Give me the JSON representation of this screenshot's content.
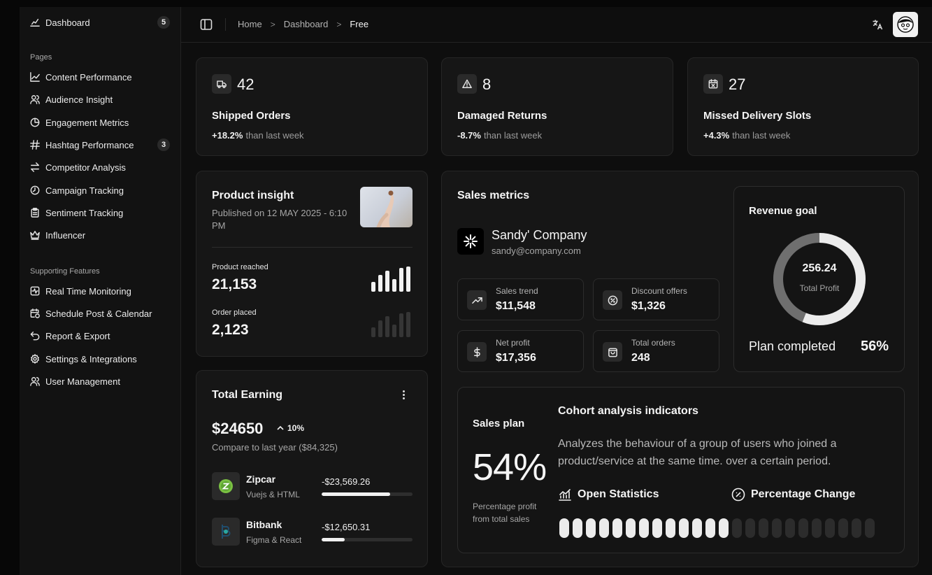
{
  "sidebar": {
    "dashboard": {
      "label": "Dashboard",
      "badge": "5",
      "icon": "chart-icon"
    },
    "pages_heading": "Pages",
    "pages": [
      {
        "label": "Content Performance",
        "icon": "line-chart-icon"
      },
      {
        "label": "Audience Insight",
        "icon": "users-icon"
      },
      {
        "label": "Engagement Metrics",
        "icon": "pie-chart-icon"
      },
      {
        "label": "Hashtag Performance",
        "icon": "hash-icon",
        "badge": "3"
      },
      {
        "label": "Competitor Analysis",
        "icon": "arrows-icon"
      },
      {
        "label": "Campaign Tracking",
        "icon": "clock-icon"
      },
      {
        "label": "Sentiment Tracking",
        "icon": "clipboard-icon"
      },
      {
        "label": "Influencer",
        "icon": "crown-icon"
      }
    ],
    "supporting_heading": "Supporting Features",
    "supporting": [
      {
        "label": "Real Time Monitoring",
        "icon": "activity-icon"
      },
      {
        "label": "Schedule Post & Calendar",
        "icon": "calendar-clock-icon"
      },
      {
        "label": "Report & Export",
        "icon": "undo-icon"
      },
      {
        "label": "Settings & Integrations",
        "icon": "gear-icon"
      },
      {
        "label": "User Management",
        "icon": "users-icon"
      }
    ]
  },
  "breadcrumb": [
    "Home",
    "Dashboard",
    "Free"
  ],
  "stats": [
    {
      "value": "42",
      "title": "Shipped Orders",
      "change": "+18.2%",
      "suffix": "than last week",
      "icon": "truck-icon"
    },
    {
      "value": "8",
      "title": "Damaged Returns",
      "change": "-8.7%",
      "suffix": "than last week",
      "icon": "warning-icon"
    },
    {
      "value": "27",
      "title": "Missed Delivery Slots",
      "change": "+4.3%",
      "suffix": "than last week",
      "icon": "calendar-x-icon"
    }
  ],
  "product_insight": {
    "title": "Product insight",
    "published": "Published on 12 MAY 2025 - 6:10 PM",
    "reached_label": "Product reached",
    "reached_value": "21,153",
    "order_label": "Order placed",
    "order_value": "2,123"
  },
  "total_earning": {
    "title": "Total Earning",
    "amount": "$24650",
    "change": "10%",
    "compare": "Compare to last year ($84,325)",
    "items": [
      {
        "name": "Zipcar",
        "sub": "Vuejs & HTML",
        "amount": "-$23,569.26",
        "progress": 0.75
      },
      {
        "name": "Bitbank",
        "sub": "Figma & React",
        "amount": "-$12,650.31",
        "progress": 0.25
      }
    ]
  },
  "sales_metrics": {
    "title": "Sales metrics",
    "company": "Sandy' Company",
    "email": "sandy@company.com",
    "boxes": [
      {
        "label": "Sales trend",
        "value": "$11,548",
        "icon": "trend-up-icon"
      },
      {
        "label": "Discount offers",
        "value": "$1,326",
        "icon": "discount-icon"
      },
      {
        "label": "Net profit",
        "value": "$17,356",
        "icon": "dollar-icon"
      },
      {
        "label": "Total orders",
        "value": "248",
        "icon": "bag-icon"
      }
    ]
  },
  "revenue_goal": {
    "title": "Revenue goal",
    "value": "256.24",
    "value_label": "Total Profit",
    "plan_label": "Plan completed",
    "plan_value": "56%",
    "fraction": 0.56
  },
  "sales_plan": {
    "title": "Sales plan",
    "percent": "54%",
    "caption": "Percentage profit from total sales",
    "cohort_title": "Cohort analysis indicators",
    "cohort_desc": "Analyzes the behaviour of a group of users who joined a product/service at the same time. over a certain period.",
    "open_stats": "Open Statistics",
    "pct_change": "Percentage Change",
    "pills_total": 24,
    "pills_filled": 13
  },
  "colors": {
    "bg": "#0e0e0e",
    "card": "#161616",
    "accent": "#f1f1f1"
  }
}
